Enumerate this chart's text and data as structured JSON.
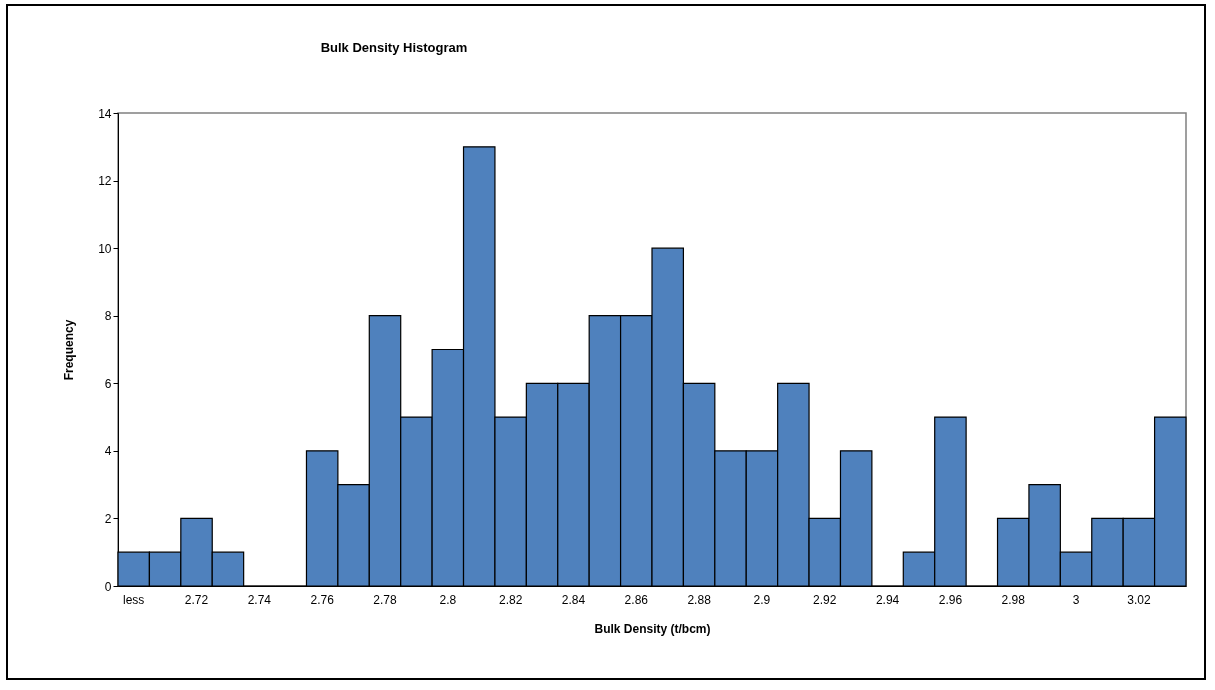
{
  "chart_data": {
    "type": "bar",
    "title": "Bulk Density Histogram",
    "xlabel": "Bulk Density (t/bcm)",
    "ylabel": "Frequency",
    "categories": [
      "less",
      null,
      "2.72",
      null,
      "2.74",
      null,
      "2.76",
      null,
      "2.78",
      null,
      "2.8",
      null,
      "2.82",
      null,
      "2.84",
      null,
      "2.86",
      null,
      "2.88",
      null,
      "2.9",
      null,
      "2.92",
      null,
      "2.94",
      null,
      "2.96",
      null,
      "2.98",
      null,
      "3",
      null,
      "3.02",
      null
    ],
    "values": [
      1,
      1,
      2,
      1,
      0,
      0,
      4,
      3,
      8,
      5,
      7,
      13,
      5,
      6,
      6,
      8,
      8,
      10,
      6,
      4,
      4,
      6,
      2,
      4,
      0,
      1,
      5,
      0,
      2,
      3,
      1,
      2,
      2,
      5
    ],
    "color": "#4f81bd",
    "ylim": [
      0,
      14
    ],
    "yticks": [
      0,
      2,
      4,
      6,
      8,
      10,
      12,
      14
    ],
    "grid": false
  }
}
